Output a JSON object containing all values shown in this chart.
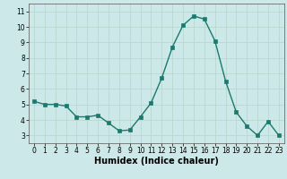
{
  "x": [
    0,
    1,
    2,
    3,
    4,
    5,
    6,
    7,
    8,
    9,
    10,
    11,
    12,
    13,
    14,
    15,
    16,
    17,
    18,
    19,
    20,
    21,
    22,
    23
  ],
  "y": [
    5.2,
    5.0,
    5.0,
    4.9,
    4.2,
    4.2,
    4.3,
    3.8,
    3.3,
    3.35,
    4.2,
    5.1,
    6.7,
    8.7,
    10.1,
    10.7,
    10.5,
    9.1,
    6.5,
    4.5,
    3.6,
    3.0,
    3.9,
    3.0
  ],
  "xlabel": "Humidex (Indice chaleur)",
  "ylim": [
    2.5,
    11.5
  ],
  "xlim": [
    -0.5,
    23.5
  ],
  "yticks": [
    3,
    4,
    5,
    6,
    7,
    8,
    9,
    10,
    11
  ],
  "xticks": [
    0,
    1,
    2,
    3,
    4,
    5,
    6,
    7,
    8,
    9,
    10,
    11,
    12,
    13,
    14,
    15,
    16,
    17,
    18,
    19,
    20,
    21,
    22,
    23
  ],
  "line_color": "#1a7a6e",
  "marker_color": "#1a7a6e",
  "bg_color": "#cce8e8",
  "grid_color": "#b8d8d0",
  "xlabel_fontsize": 7.0,
  "tick_fontsize": 5.5
}
